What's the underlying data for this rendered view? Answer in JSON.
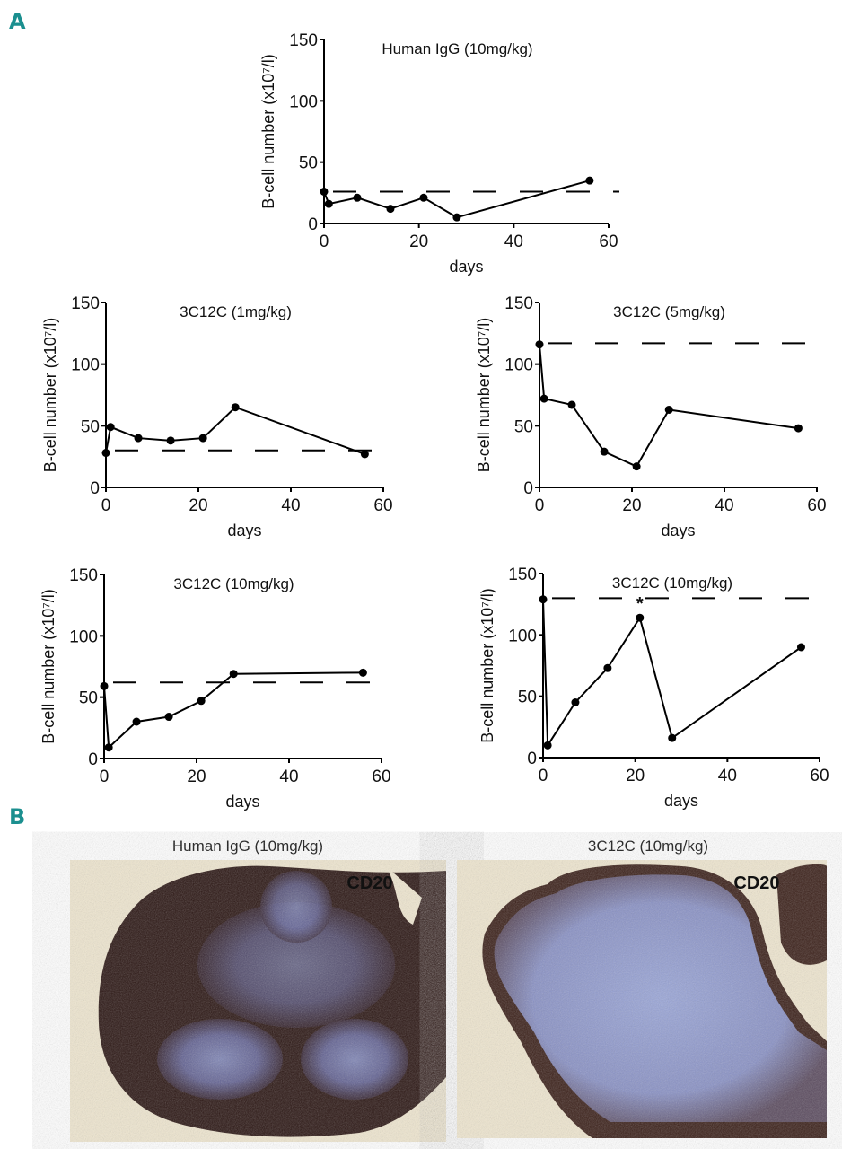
{
  "panels": {
    "a_label": "A",
    "b_label": "B"
  },
  "chart_data": [
    {
      "type": "line",
      "title": "Human IgG (10mg/kg)",
      "xlabel": "days",
      "ylabel": "B-cell number (x10⁷/l)",
      "xlim": [
        0,
        60
      ],
      "ylim": [
        0,
        150
      ],
      "xticks": [
        0,
        20,
        40,
        60
      ],
      "yticks": [
        0,
        50,
        100,
        150
      ],
      "x": [
        0,
        1,
        7,
        14,
        21,
        28,
        56
      ],
      "y": [
        26,
        16,
        21,
        12,
        21,
        5,
        35
      ],
      "baseline_dashed": 26,
      "annotations": []
    },
    {
      "type": "line",
      "title": "3C12C (1mg/kg)",
      "xlabel": "days",
      "ylabel": "B-cell number (x10⁷/l)",
      "xlim": [
        0,
        60
      ],
      "ylim": [
        0,
        150
      ],
      "xticks": [
        0,
        20,
        40,
        60
      ],
      "yticks": [
        0,
        50,
        100,
        150
      ],
      "x": [
        0,
        1,
        7,
        14,
        21,
        28,
        56
      ],
      "y": [
        28,
        49,
        40,
        38,
        40,
        65,
        27
      ],
      "baseline_dashed": 30,
      "annotations": []
    },
    {
      "type": "line",
      "title": "3C12C (5mg/kg)",
      "xlabel": "days",
      "ylabel": "B-cell number (x10⁷/l)",
      "xlim": [
        0,
        60
      ],
      "ylim": [
        0,
        150
      ],
      "xticks": [
        0,
        20,
        40,
        60
      ],
      "yticks": [
        0,
        50,
        100,
        150
      ],
      "x": [
        0,
        1,
        7,
        14,
        21,
        28,
        56
      ],
      "y": [
        116,
        72,
        67,
        29,
        17,
        63,
        48
      ],
      "baseline_dashed": 117,
      "annotations": []
    },
    {
      "type": "line",
      "title": "3C12C (10mg/kg)",
      "xlabel": "days",
      "ylabel": "B-cell number (x10⁷/l)",
      "xlim": [
        0,
        60
      ],
      "ylim": [
        0,
        150
      ],
      "xticks": [
        0,
        20,
        40,
        60
      ],
      "yticks": [
        0,
        50,
        100,
        150
      ],
      "x": [
        0,
        1,
        7,
        14,
        21,
        28,
        56
      ],
      "y": [
        59,
        9,
        30,
        34,
        47,
        69,
        70
      ],
      "baseline_dashed": 62,
      "annotations": []
    },
    {
      "type": "line",
      "title": "3C12C (10mg/kg)",
      "xlabel": "days",
      "ylabel": "B-cell number (x10⁷/l)",
      "xlim": [
        0,
        60
      ],
      "ylim": [
        0,
        150
      ],
      "xticks": [
        0,
        20,
        40,
        60
      ],
      "yticks": [
        0,
        50,
        100,
        150
      ],
      "x": [
        0,
        1,
        7,
        14,
        21,
        28,
        56
      ],
      "y": [
        129,
        10,
        45,
        73,
        114,
        16,
        90
      ],
      "baseline_dashed": 130,
      "annotations": [
        {
          "x": 21,
          "text": "*"
        }
      ]
    }
  ],
  "micrographs": [
    {
      "title": "Human IgG (10mg/kg)",
      "stain_label": "CD20"
    },
    {
      "title": "3C12C (10mg/kg)",
      "stain_label": "CD20"
    }
  ],
  "colors": {
    "panel_letter": "#1b8f8f",
    "line": "#000000",
    "tissue_stain": "#2a1512",
    "tissue_counterstain": "#7f8cc8",
    "background_slide": "#efe6cf"
  }
}
